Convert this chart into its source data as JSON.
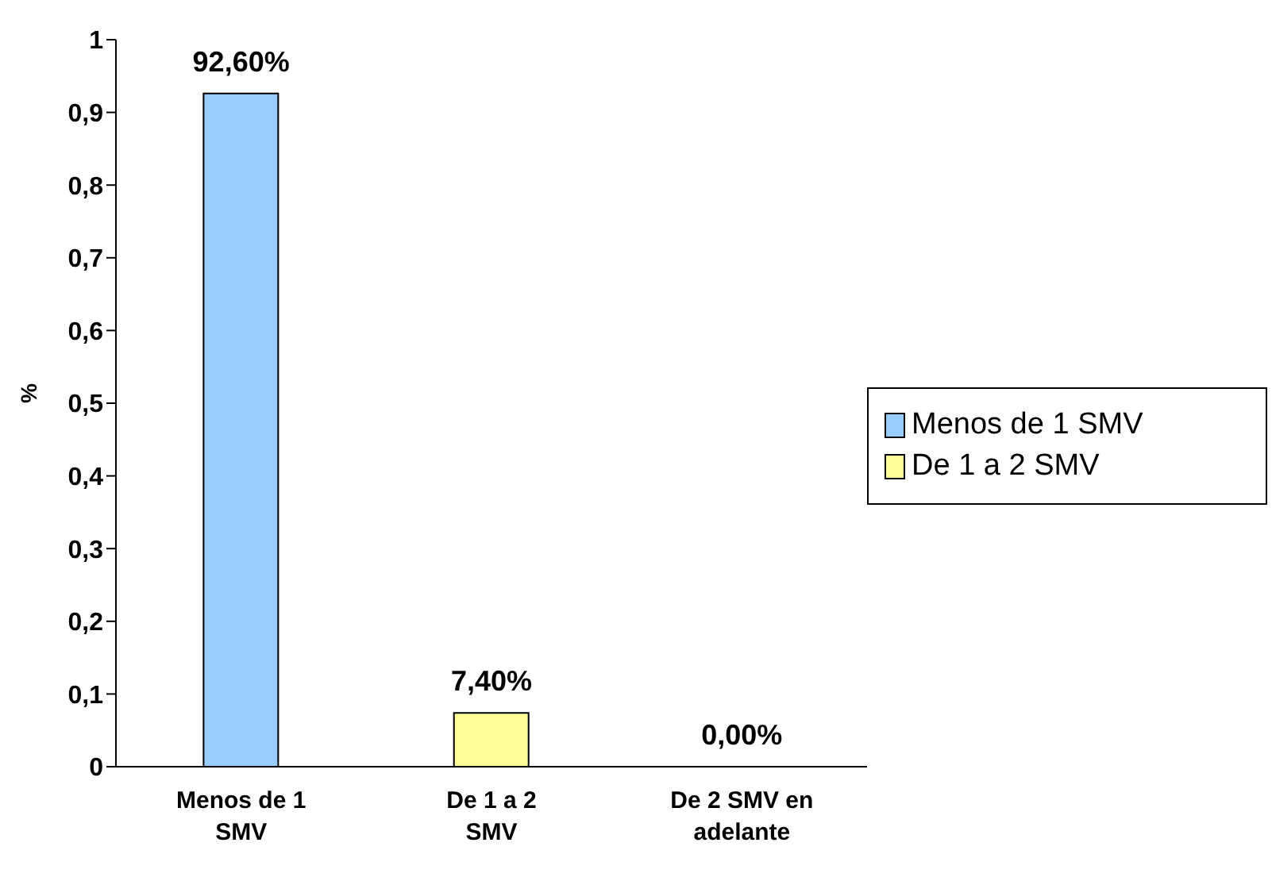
{
  "chart_data": {
    "type": "bar",
    "ylabel": "%",
    "categories": [
      "Menos de 1 SMV",
      "De 1 a 2 SMV",
      "De 2 SMV en adelante"
    ],
    "series": [
      {
        "name": "Menos de 1 SMV",
        "color": "#99ccff",
        "values": [
          0.926,
          null,
          null
        ],
        "value_labels": [
          "92,60%",
          null,
          null
        ]
      },
      {
        "name": "De 1 a 2 SMV",
        "color": "#ffff99",
        "values": [
          null,
          0.074,
          null
        ],
        "value_labels": [
          null,
          "7,40%",
          null
        ]
      },
      {
        "color": "#9999ff",
        "values": [
          null,
          null,
          0
        ],
        "value_labels": [
          null,
          null,
          "0,00%"
        ]
      }
    ],
    "ylim": [
      0,
      1
    ],
    "yticks": [
      0,
      {
        "value": 0.1,
        "label": "0,1"
      },
      {
        "value": 0.2,
        "label": "0,2"
      },
      {
        "value": 0.3,
        "label": "0,3"
      },
      {
        "value": 0.4,
        "label": "0,4"
      },
      {
        "value": 0.5,
        "label": "0,5"
      },
      {
        "value": 0.6,
        "label": "0,6"
      },
      {
        "value": 0.7,
        "label": "0,7"
      },
      {
        "value": 0.8,
        "label": "0,8"
      },
      {
        "value": 0.9,
        "label": "0,9"
      },
      1
    ],
    "grid": false,
    "legend": "right"
  }
}
